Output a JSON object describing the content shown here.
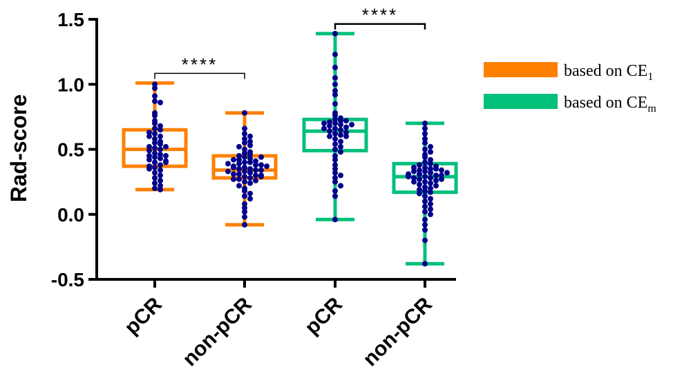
{
  "colors": {
    "ce1": "#ff8000",
    "cem": "#00c07a",
    "dots": "#00008b",
    "axis": "#000000"
  },
  "chart_data": {
    "type": "box",
    "ylabel": "Rad-score",
    "ylim": [
      -0.5,
      1.5
    ],
    "yticks": [
      -0.5,
      0.0,
      0.5,
      1.0,
      1.5
    ],
    "ytick_labels": [
      "-0.5",
      "0.0",
      "0.5",
      "1.0",
      "1.5"
    ],
    "categories": [
      "pCR",
      "non-pCR",
      "pCR",
      "non-pCR"
    ],
    "legend": [
      {
        "label": "based on CE",
        "sub": "1",
        "color_key": "ce1"
      },
      {
        "label": "based on CE",
        "sub": "m",
        "color_key": "cem"
      }
    ],
    "significance": [
      {
        "groups": [
          0,
          1
        ],
        "label": "****"
      },
      {
        "groups": [
          2,
          3
        ],
        "label": "****"
      }
    ],
    "boxes": [
      {
        "category": "pCR",
        "series": "based on CE1",
        "color_key": "ce1",
        "min": 0.19,
        "q1": 0.37,
        "median": 0.5,
        "q3": 0.65,
        "max": 1.01,
        "points": [
          1.0,
          0.97,
          0.91,
          0.87,
          0.86,
          0.78,
          0.76,
          0.72,
          0.7,
          0.68,
          0.66,
          0.65,
          0.63,
          0.62,
          0.6,
          0.58,
          0.56,
          0.55,
          0.54,
          0.52,
          0.51,
          0.5,
          0.49,
          0.47,
          0.46,
          0.45,
          0.44,
          0.43,
          0.42,
          0.41,
          0.4,
          0.38,
          0.37,
          0.36,
          0.34,
          0.32,
          0.3,
          0.28,
          0.26,
          0.24,
          0.22,
          0.2,
          0.19,
          0.45,
          0.52,
          0.4,
          0.6,
          0.35
        ]
      },
      {
        "category": "non-pCR",
        "series": "based on CE1",
        "color_key": "ce1",
        "min": -0.08,
        "q1": 0.28,
        "median": 0.34,
        "q3": 0.45,
        "max": 0.78,
        "points": [
          0.78,
          0.66,
          0.62,
          0.6,
          0.58,
          0.56,
          0.55,
          0.53,
          0.52,
          0.5,
          0.48,
          0.47,
          0.46,
          0.45,
          0.44,
          0.43,
          0.42,
          0.41,
          0.4,
          0.4,
          0.39,
          0.38,
          0.37,
          0.36,
          0.35,
          0.35,
          0.34,
          0.33,
          0.32,
          0.31,
          0.3,
          0.29,
          0.28,
          0.27,
          0.26,
          0.25,
          0.24,
          0.22,
          0.2,
          0.18,
          0.16,
          0.14,
          0.12,
          0.08,
          0.05,
          0.02,
          -0.02,
          -0.08,
          0.36,
          0.38,
          0.31,
          0.3,
          0.42,
          0.33,
          0.27,
          0.39,
          0.44,
          0.29,
          0.34,
          0.37
        ]
      },
      {
        "category": "pCR",
        "series": "based on CEm",
        "color_key": "cem",
        "min": -0.04,
        "q1": 0.49,
        "median": 0.64,
        "q3": 0.73,
        "max": 1.39,
        "points": [
          1.39,
          1.23,
          1.13,
          1.05,
          1.0,
          0.95,
          0.92,
          0.85,
          0.78,
          0.76,
          0.74,
          0.73,
          0.72,
          0.71,
          0.7,
          0.69,
          0.68,
          0.67,
          0.66,
          0.65,
          0.64,
          0.63,
          0.62,
          0.61,
          0.6,
          0.58,
          0.56,
          0.54,
          0.52,
          0.5,
          0.48,
          0.45,
          0.42,
          0.38,
          0.35,
          0.32,
          0.3,
          0.28,
          0.25,
          0.22,
          0.18,
          0.14,
          -0.04,
          0.7,
          0.66,
          0.6,
          0.72,
          0.69
        ]
      },
      {
        "category": "non-pCR",
        "series": "based on CEm",
        "color_key": "cem",
        "min": -0.38,
        "q1": 0.17,
        "median": 0.29,
        "q3": 0.39,
        "max": 0.7,
        "points": [
          0.7,
          0.66,
          0.62,
          0.58,
          0.55,
          0.52,
          0.5,
          0.48,
          0.46,
          0.44,
          0.42,
          0.4,
          0.39,
          0.38,
          0.37,
          0.36,
          0.35,
          0.34,
          0.33,
          0.32,
          0.31,
          0.3,
          0.29,
          0.28,
          0.27,
          0.26,
          0.25,
          0.24,
          0.23,
          0.22,
          0.21,
          0.2,
          0.19,
          0.18,
          0.17,
          0.16,
          0.14,
          0.12,
          0.1,
          0.08,
          0.06,
          0.04,
          0.02,
          0.0,
          -0.04,
          -0.08,
          -0.12,
          -0.2,
          -0.38,
          0.35,
          0.33,
          0.3,
          0.28,
          0.36,
          0.31,
          0.27,
          0.25,
          0.34,
          0.32,
          0.29
        ]
      }
    ]
  }
}
